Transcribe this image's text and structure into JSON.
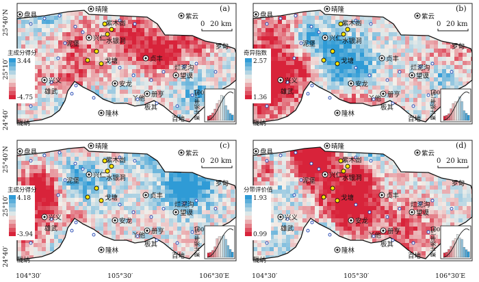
{
  "panels": [
    {
      "id": "a",
      "tag": "(a)",
      "legend_title": "主成分得分",
      "legend_max": "3.44",
      "legend_min": "-4.75",
      "seed": 11
    },
    {
      "id": "b",
      "tag": "(b)",
      "legend_title": "奇异指数",
      "legend_max": "2.57",
      "legend_min": "1.36",
      "seed": 23
    },
    {
      "id": "c",
      "tag": "(c)",
      "legend_title": "主成分得分",
      "legend_max": "4.18",
      "legend_min": "-3.94",
      "seed": 37
    },
    {
      "id": "d",
      "tag": "(d)",
      "legend_title": "分带评价值",
      "legend_max": "1.93",
      "legend_min": "0.99",
      "seed": 53
    }
  ],
  "place_labels": {
    "qinglong": "晴隆",
    "panxian": "盘县",
    "ziyun": "紫云",
    "zimudang": "紫木凼",
    "xingren": "兴仁",
    "nibao": "泥堡",
    "shuiyindong": "水银洞",
    "luodian": "罗甸",
    "gedang": "戈塘",
    "zhenfeng": "贞丰",
    "xingyi": "兴义",
    "lannigou": "烂泥沟",
    "wangmo": "望谟",
    "anlong": "安龙",
    "puwu": "雄武",
    "yata": "丫他",
    "ceheng": "册亨",
    "banqi": "板其",
    "longlin": "隆林",
    "baidi": "百地",
    "longna": "陇纳"
  },
  "scale_bar": {
    "left": "0",
    "right": "20 km"
  },
  "inset": {
    "ylabel": "累计频率(%)",
    "ytick": "100"
  },
  "axes": {
    "lat_labels": [
      "25°40′N",
      "25°10′",
      "24°40′"
    ],
    "lon_labels": [
      "104°30′",
      "105°30′",
      "106°30′E"
    ]
  },
  "colors": {
    "high": "#2f9bd6",
    "mid": "#f3f0ea",
    "low": "#d8233a",
    "frame": "#222222"
  }
}
